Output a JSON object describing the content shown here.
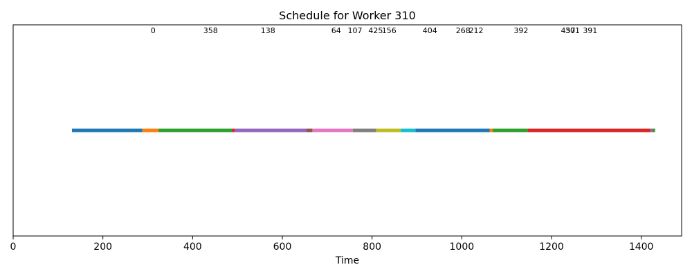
{
  "chart_data": {
    "type": "timeline",
    "title": "Schedule for Worker 310",
    "xlabel": "Time",
    "ylabel": "",
    "xlim": [
      0,
      1490
    ],
    "xticks": [
      0,
      200,
      400,
      600,
      800,
      1000,
      1200,
      1400
    ],
    "grid": false,
    "segments": [
      {
        "start": 131,
        "end": 288,
        "color": "#1f77b4",
        "label": ""
      },
      {
        "start": 288,
        "end": 324,
        "color": "#ff7f0e",
        "label": "0"
      },
      {
        "start": 324,
        "end": 488,
        "color": "#2ca02c",
        "label": "358"
      },
      {
        "start": 488,
        "end": 494,
        "color": "#d62728",
        "label": ""
      },
      {
        "start": 494,
        "end": 654,
        "color": "#9467bd",
        "label": "138"
      },
      {
        "start": 654,
        "end": 667,
        "color": "#8c564b",
        "label": ""
      },
      {
        "start": 667,
        "end": 757,
        "color": "#e377c2",
        "label": "64"
      },
      {
        "start": 757,
        "end": 809,
        "color": "#7f7f7f",
        "label": "107"
      },
      {
        "start": 809,
        "end": 864,
        "color": "#bcbd22",
        "label": "425"
      },
      {
        "start": 864,
        "end": 897,
        "color": "#17becf",
        "label": "156"
      },
      {
        "start": 897,
        "end": 1062,
        "color": "#1f77b4",
        "label": "404"
      },
      {
        "start": 1062,
        "end": 1069,
        "color": "#ff7f0e",
        "label": "268"
      },
      {
        "start": 1069,
        "end": 1147,
        "color": "#2ca02c",
        "label": "212"
      },
      {
        "start": 1147,
        "end": 1421,
        "color": "#d62728",
        "label": "392"
      },
      {
        "start": 1421,
        "end": 1424,
        "color": "#9467bd",
        "label": "457"
      },
      {
        "start": 1424,
        "end": 1426,
        "color": "#8c564b",
        "label": "301"
      },
      {
        "start": 1426,
        "end": 1431,
        "color": "#2ca02c",
        "label": "391"
      }
    ],
    "segment_labels": [
      {
        "text": "0",
        "x": 312
      },
      {
        "text": "358",
        "x": 440
      },
      {
        "text": "138",
        "x": 568
      },
      {
        "text": "64",
        "x": 720
      },
      {
        "text": "107",
        "x": 762
      },
      {
        "text": "425",
        "x": 808
      },
      {
        "text": "156",
        "x": 838
      },
      {
        "text": "404",
        "x": 929
      },
      {
        "text": "268",
        "x": 1003
      },
      {
        "text": "212",
        "x": 1032
      },
      {
        "text": "392",
        "x": 1132
      },
      {
        "text": "457",
        "x": 1237
      },
      {
        "text": "301",
        "x": 1247
      },
      {
        "text": "391",
        "x": 1286
      }
    ]
  }
}
